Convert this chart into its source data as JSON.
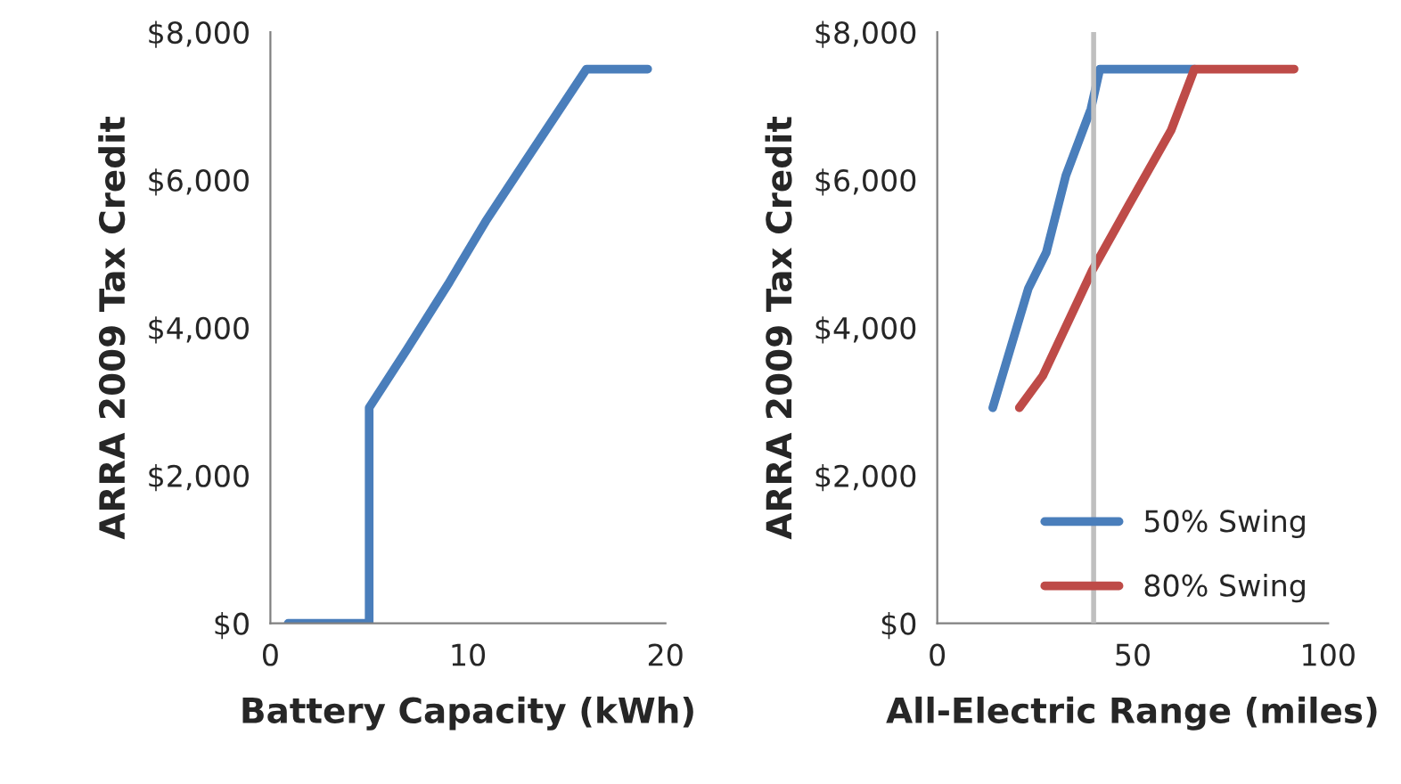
{
  "chart_data": [
    {
      "type": "line",
      "xlabel": "Battery Capacity (kWh)",
      "ylabel": "ARRA 2009 Tax Credit",
      "xlim": [
        0,
        20
      ],
      "xticks": [
        0,
        10,
        20
      ],
      "ylim": [
        0,
        8000
      ],
      "yticks": [
        {
          "value": 0,
          "label": "$0"
        },
        {
          "value": 2000,
          "label": "$2,000"
        },
        {
          "value": 4000,
          "label": "$4,000"
        },
        {
          "value": 6000,
          "label": "$6,000"
        },
        {
          "value": 8000,
          "label": "$8,000"
        }
      ],
      "grid": false,
      "legend": false,
      "series": [
        {
          "color": "#4a7ebb",
          "x": [
            0.9,
            5,
            5,
            6.9,
            9,
            10.9,
            12.8,
            16,
            19.1
          ],
          "values": [
            0,
            0,
            2917,
            3700,
            4590,
            5440,
            6210,
            7500,
            7500
          ]
        }
      ]
    },
    {
      "type": "line",
      "xlabel": "All-Electric Range (miles)",
      "ylabel": "ARRA 2009 Tax Credit",
      "xlim": [
        0,
        100
      ],
      "xticks": [
        0,
        50,
        100
      ],
      "ylim": [
        0,
        8000
      ],
      "yticks": [
        {
          "value": 0,
          "label": "$0"
        },
        {
          "value": 2000,
          "label": "$2,000"
        },
        {
          "value": 4000,
          "label": "$4,000"
        },
        {
          "value": 6000,
          "label": "$6,000"
        },
        {
          "value": 8000,
          "label": "$8,000"
        }
      ],
      "grid": false,
      "legend": "bottom right",
      "ref_lines": [
        {
          "axis": "x",
          "value": 40,
          "color": "#bfbfbf"
        }
      ],
      "series": [
        {
          "name": "50% Swing",
          "color": "#4a7ebb",
          "x": [
            14.2,
            23.3,
            27.9,
            32.9,
            39.3,
            41.6,
            65.8
          ],
          "values": [
            2917,
            4530,
            5020,
            6060,
            6960,
            7500,
            7500
          ]
        },
        {
          "name": "80% Swing",
          "color": "#be4b48",
          "x": [
            21,
            27,
            39.7,
            48.9,
            59.8,
            65.8,
            91.3
          ],
          "values": [
            2917,
            3350,
            4780,
            5650,
            6670,
            7500,
            7500
          ]
        }
      ]
    }
  ]
}
